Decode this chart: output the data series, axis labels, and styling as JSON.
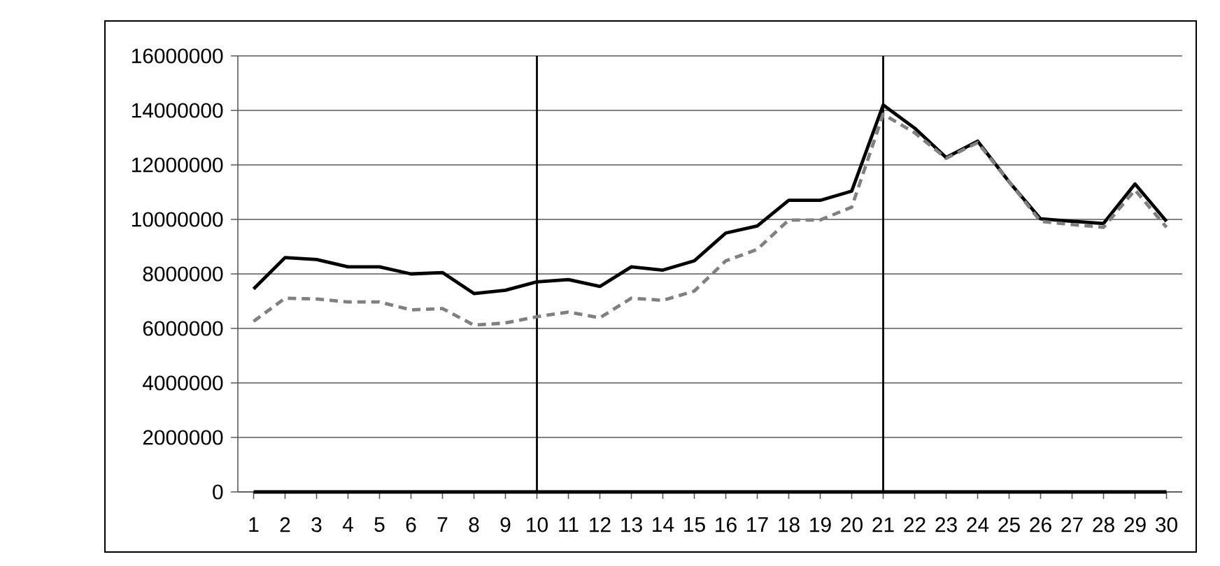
{
  "chart_data": {
    "type": "line",
    "x": [
      1,
      2,
      3,
      4,
      5,
      6,
      7,
      8,
      9,
      10,
      11,
      12,
      13,
      14,
      15,
      16,
      17,
      18,
      19,
      20,
      21,
      22,
      23,
      24,
      25,
      26,
      27,
      28,
      29,
      30
    ],
    "series": [
      {
        "color": "#000000",
        "line_style": "solid",
        "values": [
          7450000,
          8600000,
          8530000,
          8260000,
          8260000,
          8000000,
          8050000,
          7280000,
          7400000,
          7710000,
          7790000,
          7540000,
          8260000,
          8140000,
          8480000,
          9500000,
          9760000,
          10700000,
          10700000,
          11040000,
          14200000,
          13350000,
          12270000,
          12870000,
          11380000,
          10020000,
          9930000,
          9850000,
          11300000,
          9930000
        ]
      },
      {
        "color": "#808080",
        "line_style": "dashed",
        "values": [
          6260000,
          7110000,
          7080000,
          6970000,
          6970000,
          6680000,
          6730000,
          6120000,
          6200000,
          6430000,
          6600000,
          6390000,
          7110000,
          7030000,
          7370000,
          8480000,
          8900000,
          9980000,
          9980000,
          10450000,
          13860000,
          13180000,
          12240000,
          12820000,
          11380000,
          9930000,
          9810000,
          9710000,
          11080000,
          9710000
        ]
      },
      {
        "color": "#000000",
        "line_style": "solid",
        "values": [
          0,
          0,
          0,
          0,
          0,
          0,
          0,
          0,
          0,
          0,
          0,
          0,
          0,
          0,
          0,
          0,
          0,
          0,
          0,
          0,
          0,
          0,
          0,
          0,
          0,
          0,
          0,
          0,
          0,
          0
        ]
      }
    ],
    "xlim": [
      0.5,
      30.5
    ],
    "xticks": [
      1,
      2,
      3,
      4,
      5,
      6,
      7,
      8,
      9,
      10,
      11,
      12,
      13,
      14,
      15,
      16,
      17,
      18,
      19,
      20,
      21,
      22,
      23,
      24,
      25,
      26,
      27,
      28,
      29,
      30
    ],
    "ylim": [
      0,
      16000000
    ],
    "yticks": [
      0,
      2000000,
      4000000,
      6000000,
      8000000,
      10000000,
      12000000,
      14000000,
      16000000
    ],
    "grid": "y",
    "ref_lines": [
      {
        "axis": "x",
        "value": 10,
        "color": "#000000"
      },
      {
        "axis": "x",
        "value": 21,
        "color": "#000000"
      }
    ]
  }
}
